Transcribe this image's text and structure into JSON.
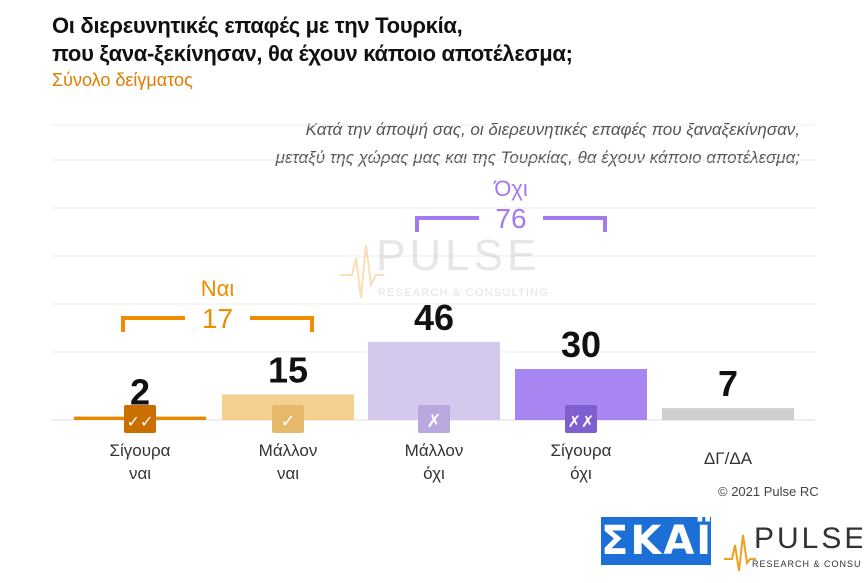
{
  "header": {
    "title": "Οι διερευνητικές επαφές με την Τουρκία,\nπου ξανα-ξεκίνησαν, θα έχουν κάποιο αποτέλεσμα;",
    "subtitle": "Σύνολο δείγματος",
    "question": "Κατά την άποψή σας, οι διερευνητικές επαφές που ξαναξεκίνησαν,\nμεταξύ της χώρας μας και της Τουρκίας, θα έχουν κάποιο αποτέλεσμα;"
  },
  "chart_data": {
    "type": "bar",
    "categories": [
      "Σίγουρα ναι",
      "Μάλλον ναι",
      "Μάλλον όχι",
      "Σίγουρα όχι",
      "ΔΓ/ΔΑ"
    ],
    "category_lines": [
      [
        "Σίγουρα",
        "ναι"
      ],
      [
        "Μάλλον",
        "ναι"
      ],
      [
        "Μάλλον",
        "όχι"
      ],
      [
        "Σίγουρα",
        "όχι"
      ],
      [
        "ΔΓ/ΔΑ",
        ""
      ]
    ],
    "values": [
      2,
      15,
      46,
      30,
      7
    ],
    "colors": [
      "#e68a00",
      "#f5cf8e",
      "#d4c8ec",
      "#a886f2",
      "#cfcfcf"
    ],
    "icons": [
      "double-check-icon",
      "check-icon",
      "cross-icon",
      "double-cross-icon",
      ""
    ],
    "icon_colors": [
      "#c96f00",
      "#e6b96a",
      "#b9a8dd",
      "#7f5fd0",
      ""
    ],
    "groups": [
      {
        "label": "Ναι",
        "total": "17",
        "color": "#f08c00",
        "members": [
          0,
          1
        ]
      },
      {
        "label": "Όχι",
        "total": "76",
        "color": "#a47af0",
        "members": [
          2,
          3
        ]
      }
    ],
    "ylim": [
      0,
      50
    ]
  },
  "watermark": {
    "brand": "PULSE",
    "tagline": "RESEARCH & CONSULTING"
  },
  "footer": {
    "copyright": "© 2021 Pulse RC",
    "skai_logo": "ΣΚΑΪ",
    "pulse_logo": "PULSE",
    "pulse_tagline": "RESEARCH & CONSULTING"
  }
}
